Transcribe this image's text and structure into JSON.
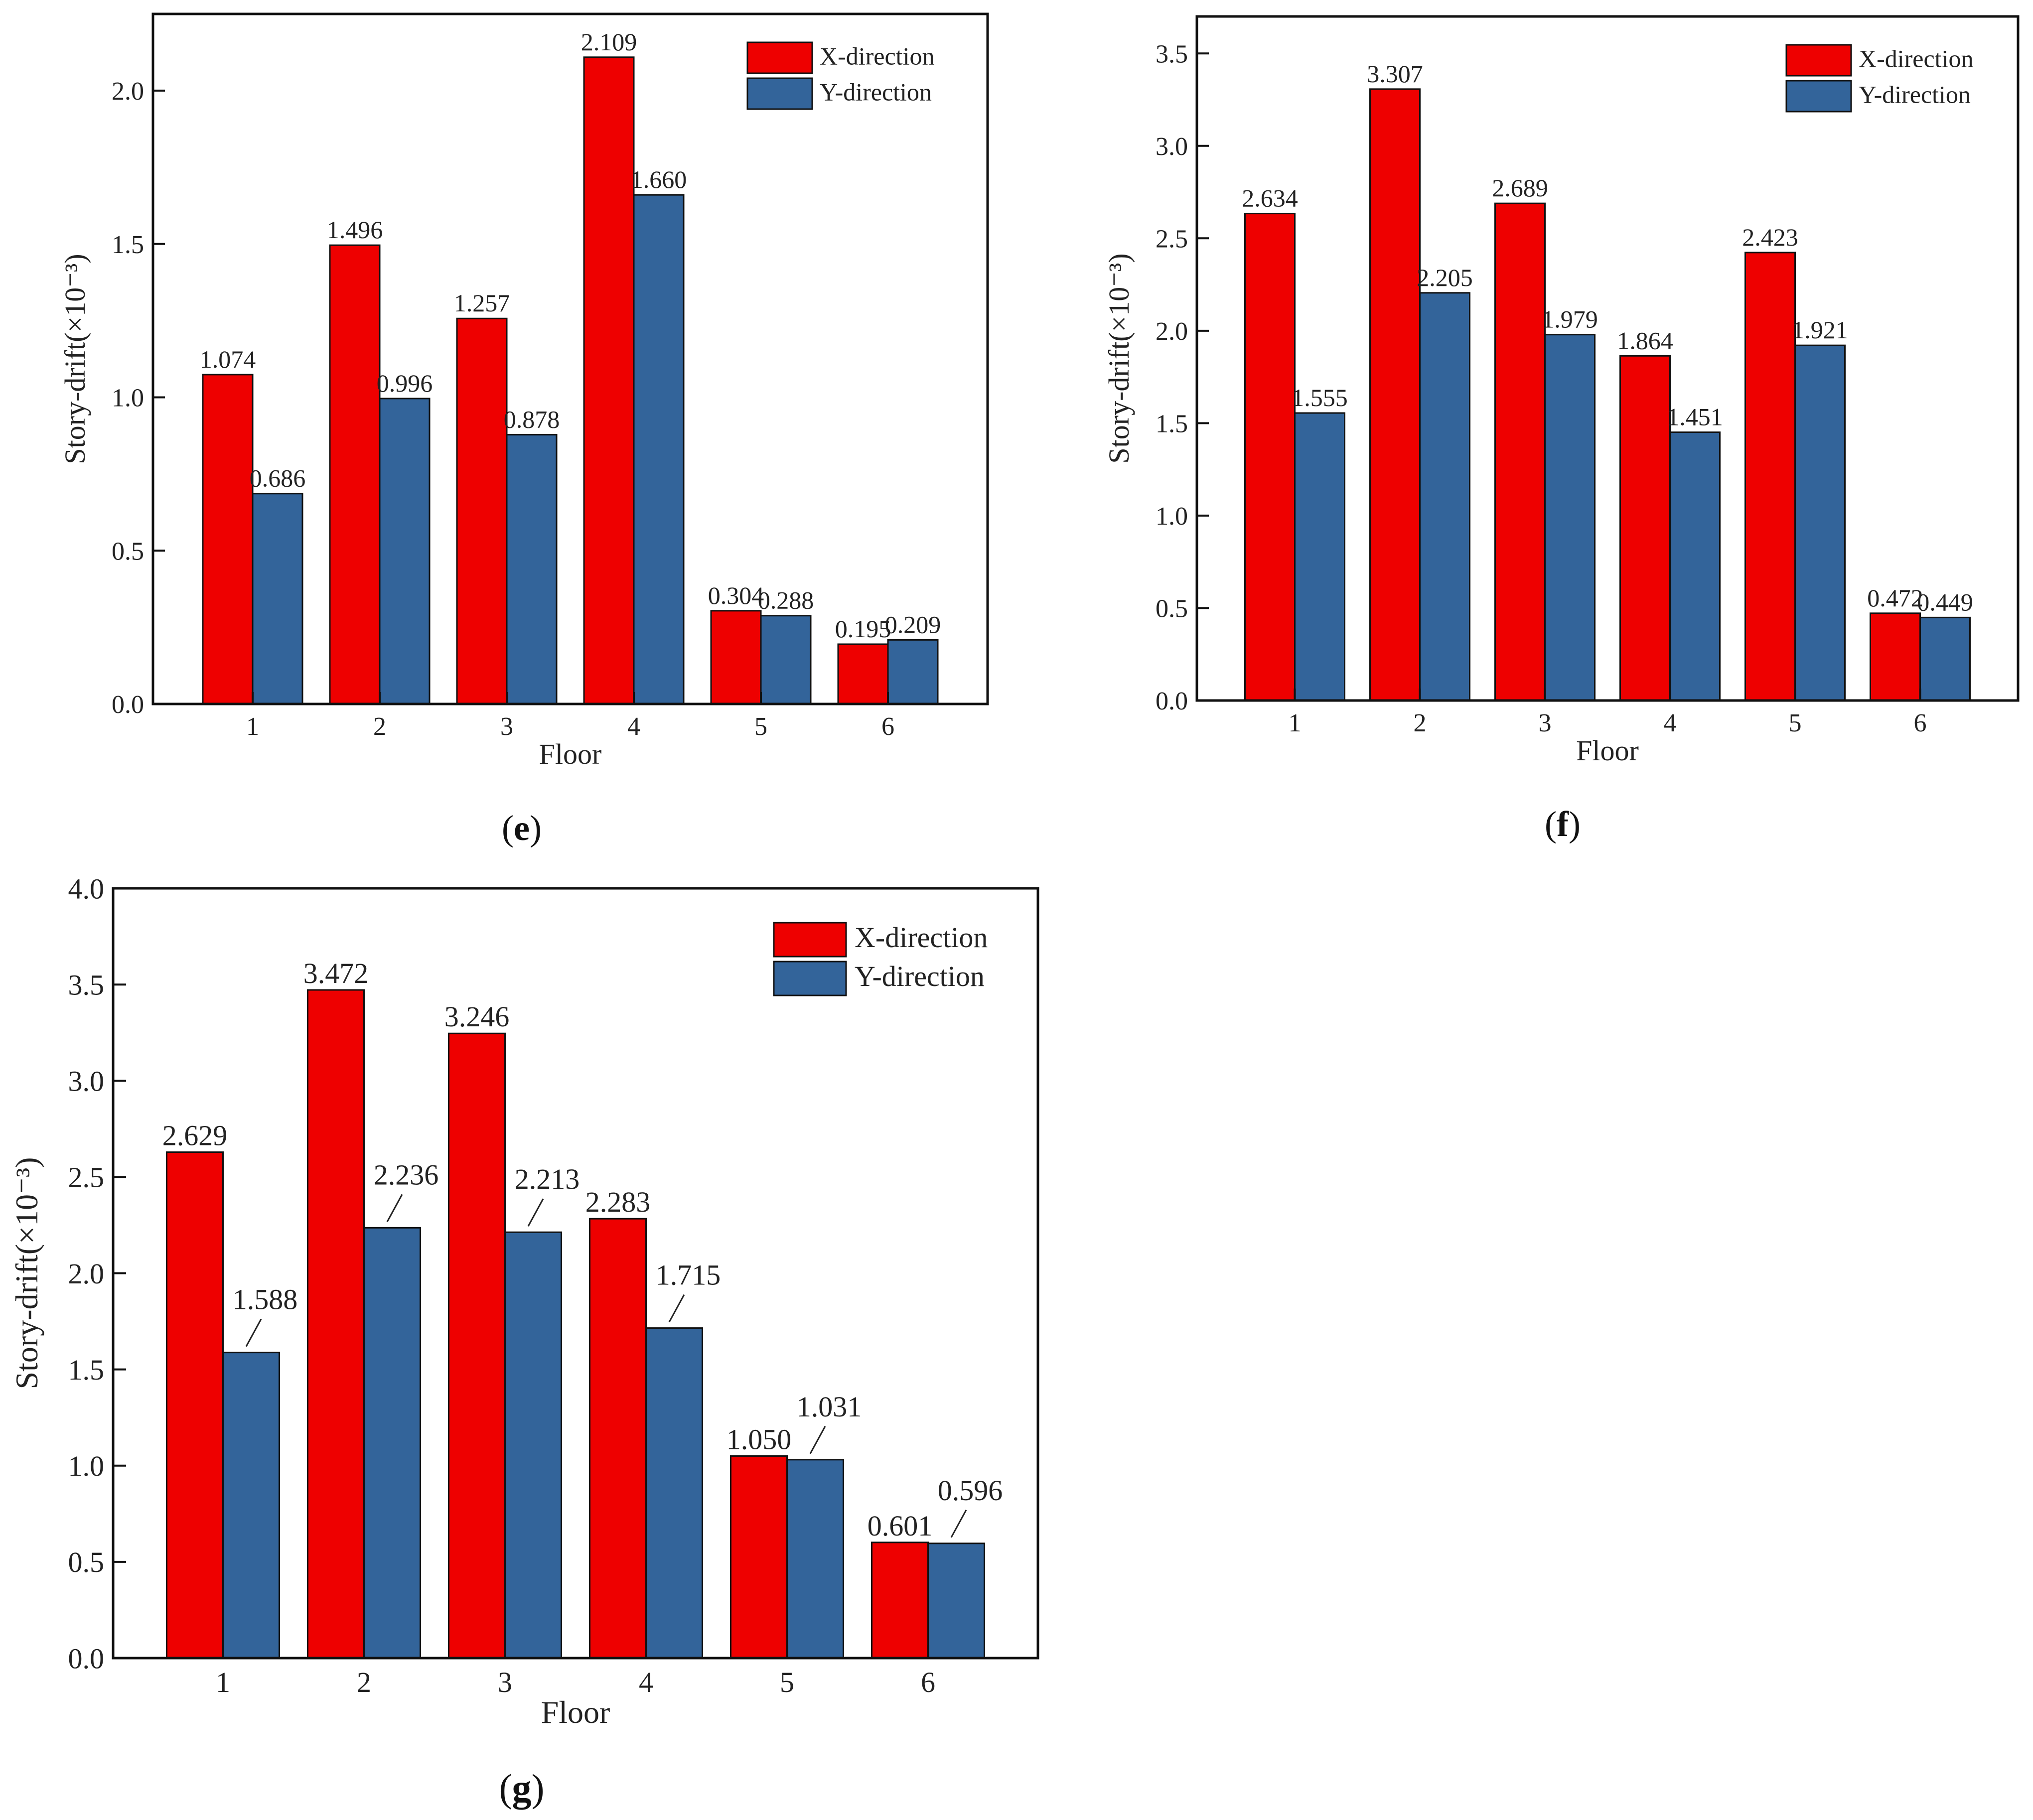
{
  "figure": {
    "background": "#ffffff"
  },
  "chart_data": [
    {
      "id": "e",
      "type": "bar",
      "panel_label": "e",
      "categories": [
        "1",
        "2",
        "3",
        "4",
        "5",
        "6"
      ],
      "series": [
        {
          "name": "X-direction",
          "color": "#ee0000",
          "values": [
            1.074,
            1.496,
            1.257,
            2.109,
            0.304,
            0.195
          ],
          "labels": [
            "1.074",
            "1.496",
            "1.257",
            "2.109",
            "0.304",
            "0.195"
          ]
        },
        {
          "name": "Y-direction",
          "color": "#33649a",
          "values": [
            0.686,
            0.996,
            0.878,
            1.66,
            0.288,
            0.209
          ],
          "labels": [
            "0.686",
            "0.996",
            "0.878",
            "1.660",
            "0.288",
            "0.209"
          ]
        }
      ],
      "xlabel": "Floor",
      "ylabel": "Story-drift(×10⁻³)",
      "ylim": [
        0,
        2.25
      ],
      "yticks": [
        "0.0",
        "0.5",
        "1.0",
        "1.5",
        "2.0"
      ],
      "legend": "top-right",
      "grid": false
    },
    {
      "id": "f",
      "type": "bar",
      "panel_label": "f",
      "categories": [
        "1",
        "2",
        "3",
        "4",
        "5",
        "6"
      ],
      "series": [
        {
          "name": "X-direction",
          "color": "#ee0000",
          "values": [
            2.634,
            3.307,
            2.689,
            1.864,
            2.423,
            0.472
          ],
          "labels": [
            "2.634",
            "3.307",
            "2.689",
            "1.864",
            "2.423",
            "0.472"
          ]
        },
        {
          "name": "Y-direction",
          "color": "#33649a",
          "values": [
            1.555,
            2.205,
            1.979,
            1.451,
            1.921,
            0.449
          ],
          "labels": [
            "1.555",
            "2.205",
            "1.979",
            "1.451",
            "1.921",
            "0.449"
          ]
        }
      ],
      "xlabel": "Floor",
      "ylabel": "Story-drift(×10⁻³)",
      "ylim": [
        0,
        3.7
      ],
      "yticks": [
        "0.0",
        "0.5",
        "1.0",
        "1.5",
        "2.0",
        "2.5",
        "3.0",
        "3.5"
      ],
      "legend": "top-right",
      "grid": false
    },
    {
      "id": "g",
      "type": "bar",
      "panel_label": "g",
      "categories": [
        "1",
        "2",
        "3",
        "4",
        "5",
        "6"
      ],
      "series": [
        {
          "name": "X-direction",
          "color": "#ee0000",
          "values": [
            2.629,
            3.472,
            3.246,
            2.283,
            1.05,
            0.601
          ],
          "labels": [
            "2.629",
            "3.472",
            "3.246",
            "2.283",
            "1.050",
            "0.601"
          ]
        },
        {
          "name": "Y-direction",
          "color": "#33649a",
          "values": [
            1.588,
            2.236,
            2.213,
            1.715,
            1.031,
            0.596
          ],
          "labels": [
            "1.588",
            "2.236",
            "2.213",
            "1.715",
            "1.031",
            "0.596"
          ]
        }
      ],
      "xlabel": "Floor",
      "ylabel": "Story-drift(×10⁻³)",
      "ylim": [
        0,
        4.0
      ],
      "yticks": [
        "0.0",
        "0.5",
        "1.0",
        "1.5",
        "2.0",
        "2.5",
        "3.0",
        "3.5",
        "4.0"
      ],
      "legend": "top-right",
      "grid": false
    }
  ]
}
